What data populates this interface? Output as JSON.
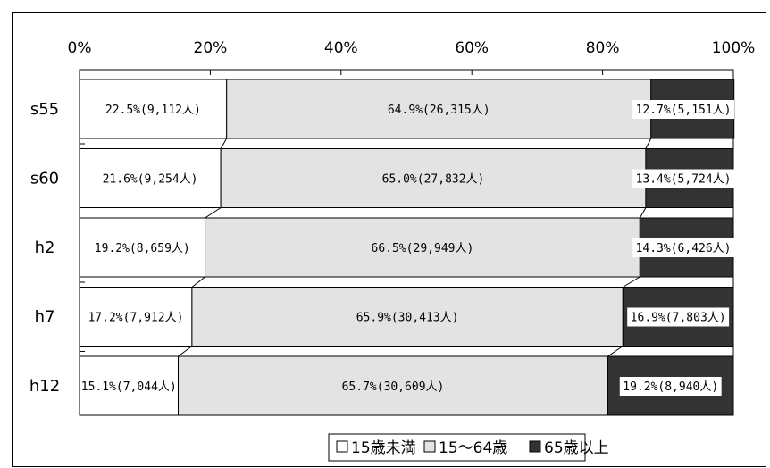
{
  "chart_data": {
    "type": "bar",
    "orientation": "horizontal",
    "stacked": "percent",
    "categories": [
      "s55",
      "s60",
      "h2",
      "h7",
      "h12"
    ],
    "series": [
      {
        "name": "15歳未満",
        "color": "#ffffff",
        "values": [
          22.5,
          21.6,
          19.2,
          17.2,
          15.1
        ],
        "labels": [
          "22.5%(9,112人)",
          "21.6%(9,254人)",
          "19.2%(8,659人)",
          "17.2%(7,912人)",
          "15.1%(7,044人)"
        ]
      },
      {
        "name": "15～64歳",
        "color": "#e3e3e3",
        "values": [
          64.9,
          65.0,
          66.5,
          65.9,
          65.7
        ],
        "labels": [
          "64.9%(26,315人)",
          "65.0%(27,832人)",
          "66.5%(29,949人)",
          "65.9%(30,413人)",
          "65.7%(30,609人)"
        ]
      },
      {
        "name": "65歳以上",
        "color": "#333333",
        "values": [
          12.7,
          13.4,
          14.3,
          16.9,
          19.2
        ],
        "labels": [
          "12.7%(5,151人)",
          "13.4%(5,724人)",
          "14.3%(6,426人)",
          "16.9%(7,803人)",
          "19.2%(8,940人)"
        ]
      }
    ],
    "xaxis": {
      "ticks": [
        0,
        20,
        40,
        60,
        80,
        100
      ],
      "tick_labels": [
        "0%",
        "20%",
        "40%",
        "60%",
        "80%",
        "100%"
      ],
      "position": "top",
      "range": [
        0,
        100
      ]
    },
    "series_lines": true,
    "legend": {
      "position": "bottom",
      "entries": [
        "15歳未満",
        "15～64歳",
        "65歳以上"
      ]
    }
  }
}
